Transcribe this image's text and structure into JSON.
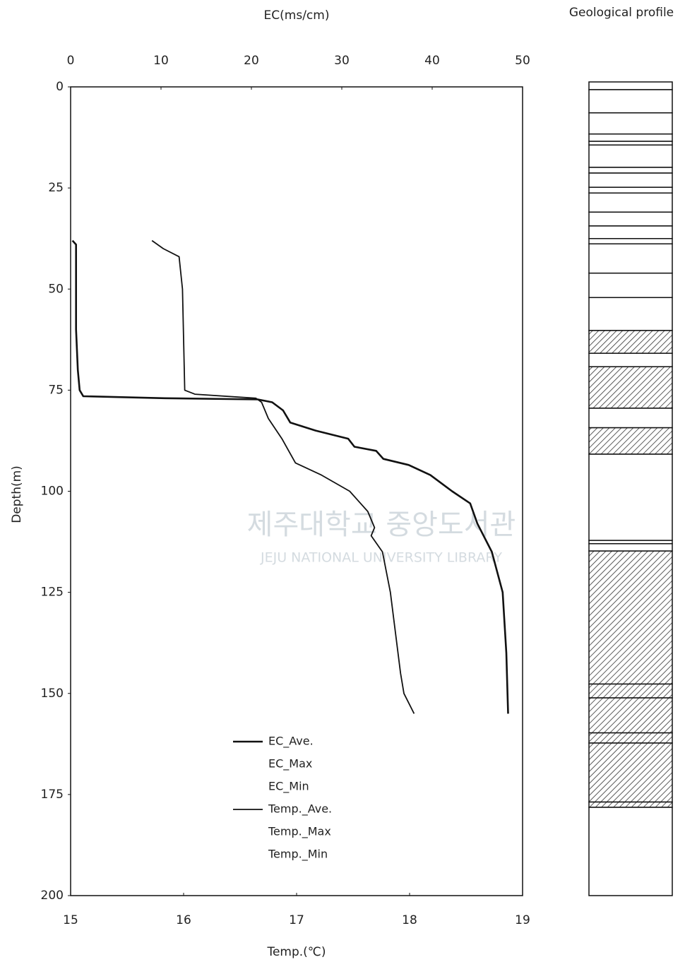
{
  "chart_data": {
    "type": "line",
    "xlabel": "EC(ms/cm)",
    "x2label": "Temp.(℃)",
    "ylabel": "Depth(m)",
    "xlim": [
      0,
      50
    ],
    "xticks": [
      0,
      10,
      20,
      30,
      40,
      50
    ],
    "x2lim": [
      15,
      19
    ],
    "x2ticks": [
      15,
      16,
      17,
      18,
      19
    ],
    "ylim": [
      0,
      200
    ],
    "yticks": [
      0,
      25,
      50,
      75,
      100,
      125,
      150,
      175,
      200
    ],
    "y_inverted": true,
    "series": [
      {
        "name": "EC_Ave.",
        "color": "#111111",
        "line_width": 2.6,
        "axis": "x",
        "depth": [
          38,
          39,
          60,
          70,
          75,
          76.5,
          77,
          77.3,
          78,
          80,
          83,
          85,
          87,
          89,
          90,
          92,
          93.5,
          96,
          100,
          103,
          108,
          115,
          125,
          140,
          155
        ],
        "values": [
          0.2,
          0.6,
          0.6,
          0.8,
          1.0,
          1.4,
          10.4,
          20.7,
          22.3,
          23.5,
          24.3,
          27.1,
          30.7,
          31.4,
          33.8,
          34.6,
          37.4,
          39.8,
          42.2,
          44.2,
          45.0,
          46.6,
          47.8,
          48.2,
          48.4
        ]
      },
      {
        "name": "EC_Max",
        "color": "#ffffff",
        "line_width": 1,
        "axis": "x",
        "depth": [],
        "values": []
      },
      {
        "name": "EC_Min",
        "color": "#ffffff",
        "line_width": 1,
        "axis": "x",
        "depth": [],
        "values": []
      },
      {
        "name": "Temp._Ave.",
        "color": "#111111",
        "line_width": 1.8,
        "axis": "x2",
        "depth": [
          38,
          40,
          42,
          50,
          75,
          76,
          77,
          78,
          82,
          87,
          90,
          93,
          96,
          100,
          105,
          109,
          111,
          115,
          125,
          145,
          150,
          155
        ],
        "values": [
          15.72,
          15.82,
          15.96,
          15.99,
          16.01,
          16.1,
          16.64,
          16.69,
          16.75,
          16.87,
          16.93,
          16.99,
          17.22,
          17.47,
          17.63,
          17.69,
          17.66,
          17.76,
          17.83,
          17.92,
          17.95,
          18.04
        ]
      },
      {
        "name": "Temp._Max",
        "color": "#ffffff",
        "line_width": 1,
        "axis": "x2",
        "depth": [],
        "values": []
      },
      {
        "name": "Temp._Min",
        "color": "#ffffff",
        "line_width": 1,
        "axis": "x2",
        "depth": [],
        "values": []
      }
    ]
  },
  "watermark": [
    "제주대학교 중앙도서관",
    "JEJU NATIONAL UNIVERSITY LIBRARY"
  ],
  "geological_profile": {
    "title": "Geological profile",
    "ylim": [
      0,
      200
    ],
    "layers": [
      {
        "top": 0,
        "bottom": 1.9,
        "hatched": false
      },
      {
        "top": 1.9,
        "bottom": 7.6,
        "hatched": false
      },
      {
        "top": 7.6,
        "bottom": 12.8,
        "hatched": false
      },
      {
        "top": 12.8,
        "bottom": 14.6,
        "hatched": false
      },
      {
        "top": 14.6,
        "bottom": 15.5,
        "hatched": false
      },
      {
        "top": 15.5,
        "bottom": 21,
        "hatched": false
      },
      {
        "top": 21,
        "bottom": 22.4,
        "hatched": false
      },
      {
        "top": 22.4,
        "bottom": 25.9,
        "hatched": false
      },
      {
        "top": 25.9,
        "bottom": 27.3,
        "hatched": false
      },
      {
        "top": 27.3,
        "bottom": 32,
        "hatched": false
      },
      {
        "top": 32,
        "bottom": 35.4,
        "hatched": false
      },
      {
        "top": 35.4,
        "bottom": 38.5,
        "hatched": false
      },
      {
        "top": 38.5,
        "bottom": 39.8,
        "hatched": false
      },
      {
        "top": 39.8,
        "bottom": 47,
        "hatched": false
      },
      {
        "top": 47,
        "bottom": 53,
        "hatched": false
      },
      {
        "top": 53,
        "bottom": 61.1,
        "hatched": false
      },
      {
        "top": 61.1,
        "bottom": 66.7,
        "hatched": true
      },
      {
        "top": 66.7,
        "bottom": 70,
        "hatched": false
      },
      {
        "top": 70,
        "bottom": 80.2,
        "hatched": true
      },
      {
        "top": 80.2,
        "bottom": 85,
        "hatched": false
      },
      {
        "top": 85,
        "bottom": 91.5,
        "hatched": true
      },
      {
        "top": 91.5,
        "bottom": 112.7,
        "hatched": false
      },
      {
        "top": 112.7,
        "bottom": 113.5,
        "hatched": false
      },
      {
        "top": 113.5,
        "bottom": 115.3,
        "hatched": false
      },
      {
        "top": 115.3,
        "bottom": 148,
        "hatched": true
      },
      {
        "top": 148,
        "bottom": 151.4,
        "hatched": true
      },
      {
        "top": 151.4,
        "bottom": 160,
        "hatched": true
      },
      {
        "top": 160,
        "bottom": 162.5,
        "hatched": true
      },
      {
        "top": 162.5,
        "bottom": 177,
        "hatched": true
      },
      {
        "top": 177,
        "bottom": 178.3,
        "hatched": true
      },
      {
        "top": 178.3,
        "bottom": 200,
        "hatched": false
      }
    ]
  }
}
